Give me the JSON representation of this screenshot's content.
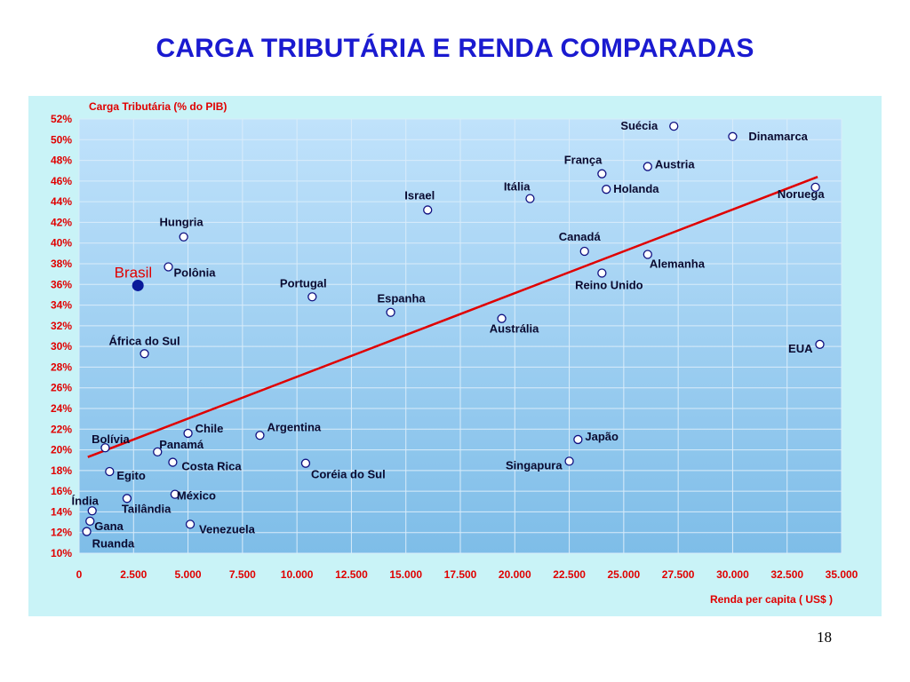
{
  "slide": {
    "title": "CARGA TRIBUTÁRIA E RENDA COMPARADAS",
    "page_number": "18"
  },
  "colors": {
    "panel_bg": "#c9f3f7",
    "plot_top": "#c0e2fb",
    "plot_bottom": "#7ebde8",
    "grid": "#d9ecfa",
    "axis_text": "#e00000",
    "trend_line": "#e00000",
    "point_fill": "#ffffff",
    "point_stroke": "#101080",
    "highlight_point": "#0a1a9a",
    "title": "#1a1ad0"
  },
  "chart_data": {
    "type": "scatter",
    "title": "",
    "ylabel": "Carga Tributária (% do PIB)",
    "xlabel": "Renda per capita ( US$ )",
    "xlim": [
      0,
      35000
    ],
    "ylim": [
      10,
      52
    ],
    "grid": true,
    "x_ticks": [
      0,
      2500,
      5000,
      7500,
      10000,
      12500,
      15000,
      17500,
      20000,
      22500,
      25000,
      27500,
      30000,
      32500,
      35000
    ],
    "x_tick_labels": [
      "0",
      "2.500",
      "5.000",
      "7.500",
      "10.000",
      "12.500",
      "15.000",
      "17.500",
      "20.000",
      "22.500",
      "25.000",
      "27.500",
      "30.000",
      "32.500",
      "35.000"
    ],
    "y_ticks": [
      10,
      12,
      14,
      16,
      18,
      20,
      22,
      24,
      26,
      28,
      30,
      32,
      34,
      36,
      38,
      40,
      42,
      44,
      46,
      48,
      50,
      52
    ],
    "y_tick_labels": [
      "10%",
      "12%",
      "14%",
      "16%",
      "18%",
      "20%",
      "22%",
      "24%",
      "26%",
      "28%",
      "30%",
      "32%",
      "34%",
      "36%",
      "38%",
      "40%",
      "42%",
      "44%",
      "46%",
      "48%",
      "50%",
      "52%"
    ],
    "trend_line": {
      "x": [
        400,
        33900
      ],
      "y": [
        19.3,
        46.4
      ]
    },
    "points": [
      {
        "label": "Suécia",
        "x": 27300,
        "y": 51.3,
        "anchor": "end",
        "dx": -18,
        "dy": 0
      },
      {
        "label": "Dinamarca",
        "x": 30000,
        "y": 50.3,
        "anchor": "start",
        "dx": 18,
        "dy": 0
      },
      {
        "label": "França",
        "x": 24000,
        "y": 46.7,
        "anchor": "end",
        "dx": 0,
        "dy": -15
      },
      {
        "label": "Austria",
        "x": 26100,
        "y": 47.4,
        "anchor": "start",
        "dx": 8,
        "dy": -2
      },
      {
        "label": "Holanda",
        "x": 24200,
        "y": 45.2,
        "anchor": "start",
        "dx": 8,
        "dy": 0
      },
      {
        "label": "Itália",
        "x": 20700,
        "y": 44.3,
        "anchor": "end",
        "dx": 0,
        "dy": -13
      },
      {
        "label": "Noruega",
        "x": 33800,
        "y": 45.4,
        "anchor": "end",
        "dx": 10,
        "dy": 8
      },
      {
        "label": "Israel",
        "x": 16000,
        "y": 43.2,
        "anchor": "end",
        "dx": 8,
        "dy": -16
      },
      {
        "label": "Hungria",
        "x": 4800,
        "y": 40.6,
        "anchor": "end",
        "dx": 22,
        "dy": -16
      },
      {
        "label": "Canadá",
        "x": 23200,
        "y": 39.2,
        "anchor": "end",
        "dx": 18,
        "dy": -16
      },
      {
        "label": "Alemanha",
        "x": 26100,
        "y": 38.9,
        "anchor": "start",
        "dx": 2,
        "dy": 11
      },
      {
        "label": "Polônia",
        "x": 4100,
        "y": 37.7,
        "anchor": "start",
        "dx": 6,
        "dy": 7
      },
      {
        "label": "Reino Unido",
        "x": 24000,
        "y": 37.1,
        "anchor": "middle",
        "dx": 8,
        "dy": 14
      },
      {
        "label": "Brasil",
        "x": 2700,
        "y": 35.9,
        "anchor": "end",
        "dx": 16,
        "dy": -13,
        "highlight": true
      },
      {
        "label": "Portugal",
        "x": 10700,
        "y": 34.8,
        "anchor": "middle",
        "dx": -10,
        "dy": -15
      },
      {
        "label": "Espanha",
        "x": 14300,
        "y": 33.3,
        "anchor": "middle",
        "dx": 12,
        "dy": -15
      },
      {
        "label": "Austrália",
        "x": 19400,
        "y": 32.7,
        "anchor": "middle",
        "dx": 14,
        "dy": 12
      },
      {
        "label": "EUA",
        "x": 34000,
        "y": 30.2,
        "anchor": "end",
        "dx": -8,
        "dy": 5
      },
      {
        "label": "África do Sul",
        "x": 3000,
        "y": 29.3,
        "anchor": "middle",
        "dx": 0,
        "dy": -14
      },
      {
        "label": "Chile",
        "x": 5000,
        "y": 21.6,
        "anchor": "start",
        "dx": 8,
        "dy": -5
      },
      {
        "label": "Argentina",
        "x": 8300,
        "y": 21.4,
        "anchor": "start",
        "dx": 8,
        "dy": -9
      },
      {
        "label": "Bolívia",
        "x": 1200,
        "y": 20.2,
        "anchor": "middle",
        "dx": 6,
        "dy": -9
      },
      {
        "label": "Panamá",
        "x": 3600,
        "y": 19.8,
        "anchor": "start",
        "dx": 2,
        "dy": -8
      },
      {
        "label": "Japão",
        "x": 22900,
        "y": 21.0,
        "anchor": "start",
        "dx": 8,
        "dy": -3
      },
      {
        "label": "Singapura",
        "x": 22500,
        "y": 18.9,
        "anchor": "end",
        "dx": -8,
        "dy": 5
      },
      {
        "label": "Costa Rica",
        "x": 4300,
        "y": 18.8,
        "anchor": "start",
        "dx": 10,
        "dy": 5
      },
      {
        "label": "Coréia do Sul",
        "x": 10400,
        "y": 18.7,
        "anchor": "start",
        "dx": 6,
        "dy": 13
      },
      {
        "label": "Egito",
        "x": 1400,
        "y": 17.9,
        "anchor": "start",
        "dx": 8,
        "dy": 5
      },
      {
        "label": "México",
        "x": 4400,
        "y": 15.7,
        "anchor": "start",
        "dx": 2,
        "dy": 2
      },
      {
        "label": "Índia",
        "x": 600,
        "y": 14.1,
        "anchor": "middle",
        "dx": -8,
        "dy": -11
      },
      {
        "label": "Tailândia",
        "x": 2200,
        "y": 15.3,
        "anchor": "start",
        "dx": -6,
        "dy": 12
      },
      {
        "label": "Venezuela",
        "x": 5100,
        "y": 12.8,
        "anchor": "start",
        "dx": 10,
        "dy": 6
      },
      {
        "label": "Gana",
        "x": 500,
        "y": 13.1,
        "anchor": "start",
        "dx": 5,
        "dy": 6
      },
      {
        "label": "Ruanda",
        "x": 350,
        "y": 12.1,
        "anchor": "start",
        "dx": 6,
        "dy": 14
      }
    ]
  }
}
